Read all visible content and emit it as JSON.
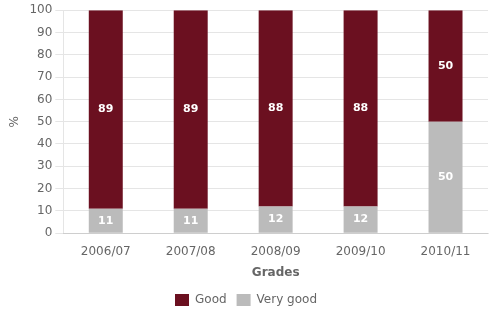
{
  "chart_data": {
    "type": "bar",
    "stacked": true,
    "categories": [
      "2006/07",
      "2007/08",
      "2008/09",
      "2009/10",
      "2010/11"
    ],
    "series": [
      {
        "name": "Very good",
        "color": "#BBBBBB",
        "values": [
          11,
          11,
          12,
          12,
          50
        ]
      },
      {
        "name": "Good",
        "color": "#6B1020",
        "values": [
          89,
          89,
          88,
          88,
          50
        ]
      }
    ],
    "xlabel": "Grades",
    "ylabel": "%",
    "ylim": [
      0,
      100
    ],
    "yticks": [
      0,
      10,
      20,
      30,
      40,
      50,
      60,
      70,
      80,
      90,
      100
    ],
    "grid": true,
    "legend": "bottom",
    "data_labels": true
  }
}
